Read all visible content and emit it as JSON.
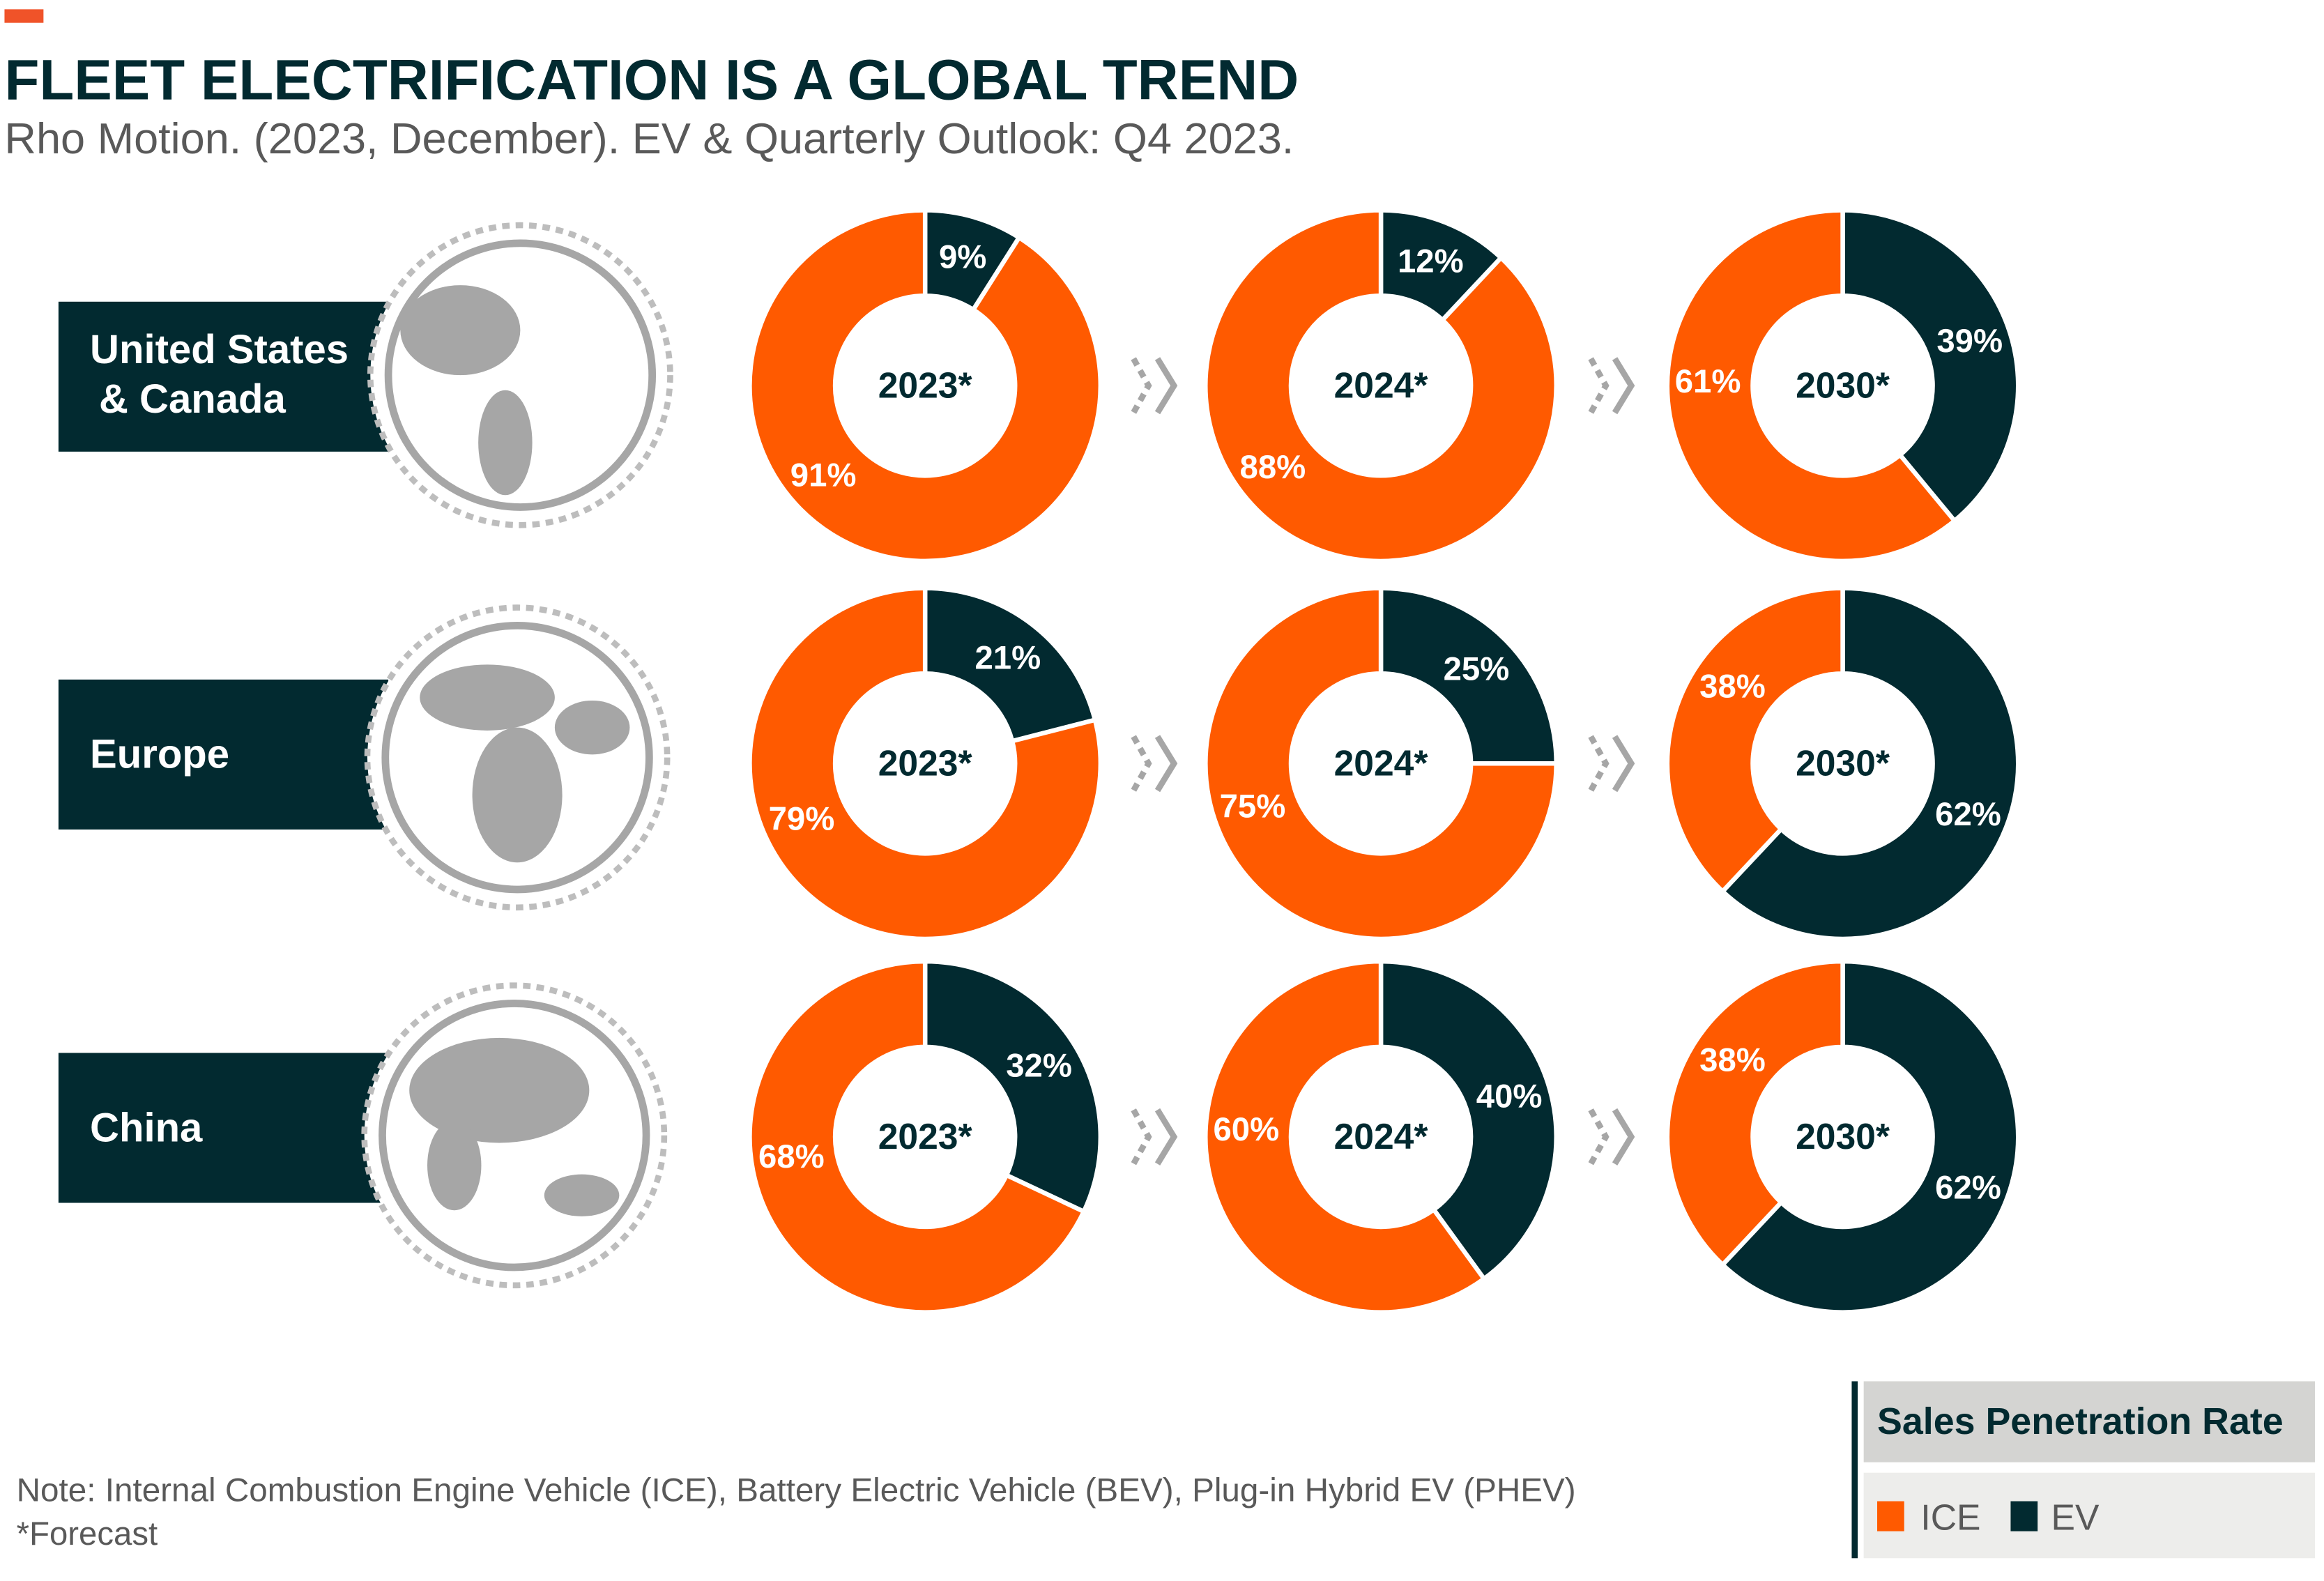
{
  "title": "FLEET ELECTRIFICATION IS A GLOBAL TREND",
  "subtitle": "Rho Motion. (2023, December). EV & Quarterly Outlook: Q4 2023.",
  "note": "Note: Internal Combustion Engine Vehicle (ICE), Battery Electric Vehicle (BEV), Plug-in Hybrid EV (PHEV)",
  "footnote": "*Forecast",
  "legend": {
    "title": "Sales Penetration Rate",
    "ice": "ICE",
    "ev": "EV"
  },
  "colors": {
    "ice": "#ff5a00",
    "ev": "#022a30",
    "accent": "#f05329",
    "globe": "#a6a6a6"
  },
  "regions": [
    {
      "line1": "United States",
      "line2": "& Canada",
      "globe_icon": "americas-globe-icon"
    },
    {
      "line1": "Europe",
      "line2": "",
      "globe_icon": "europe-africa-globe-icon"
    },
    {
      "line1": "China",
      "line2": "",
      "globe_icon": "asia-globe-icon"
    }
  ],
  "chart_data": {
    "type": "pie",
    "subtype": "donut-grid",
    "series_names": [
      "ICE",
      "EV"
    ],
    "years": [
      "2023*",
      "2024*",
      "2030*"
    ],
    "rows": [
      {
        "region": "United States & Canada",
        "values": [
          {
            "year": "2023*",
            "ICE": 91,
            "EV": 9
          },
          {
            "year": "2024*",
            "ICE": 88,
            "EV": 12
          },
          {
            "year": "2030*",
            "ICE": 61,
            "EV": 39
          }
        ]
      },
      {
        "region": "Europe",
        "values": [
          {
            "year": "2023*",
            "ICE": 79,
            "EV": 21
          },
          {
            "year": "2024*",
            "ICE": 75,
            "EV": 25
          },
          {
            "year": "2030*",
            "ICE": 38,
            "EV": 62
          }
        ]
      },
      {
        "region": "China",
        "values": [
          {
            "year": "2023*",
            "ICE": 68,
            "EV": 32
          },
          {
            "year": "2024*",
            "ICE": 60,
            "EV": 40
          },
          {
            "year": "2030*",
            "ICE": 38,
            "EV": 62
          }
        ]
      }
    ],
    "labels": [
      [
        {
          "ICE": "91%",
          "EV": "9%"
        },
        {
          "ICE": "88%",
          "EV": "12%"
        },
        {
          "ICE": "61%",
          "EV": "39%"
        }
      ],
      [
        {
          "ICE": "79%",
          "EV": "21%"
        },
        {
          "ICE": "75%",
          "EV": "25%"
        },
        {
          "ICE": "38%",
          "EV": "62%"
        }
      ],
      [
        {
          "ICE": "68%",
          "EV": "32%"
        },
        {
          "ICE": "60%",
          "EV": "40%"
        },
        {
          "ICE": "38%",
          "EV": "62%"
        }
      ]
    ]
  }
}
